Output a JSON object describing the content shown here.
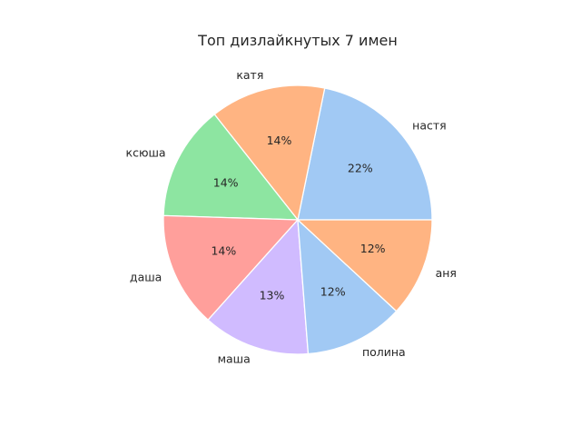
{
  "chart_data": {
    "type": "pie",
    "title": "Топ дизлайкнутых 7 имен",
    "start_angle": 0,
    "direction": "counterclockwise",
    "categories": [
      "настя",
      "катя",
      "ксюша",
      "даша",
      "маша",
      "полина",
      "аня"
    ],
    "values": [
      22,
      14,
      14,
      14,
      13,
      12,
      12
    ],
    "percent_labels": [
      "22%",
      "14%",
      "14%",
      "14%",
      "13%",
      "12%",
      "12%"
    ],
    "colors": [
      "#a1c9f4",
      "#ffb482",
      "#8de5a1",
      "#ff9f9b",
      "#d0bbff",
      "#a1c9f4",
      "#ffb482"
    ]
  }
}
